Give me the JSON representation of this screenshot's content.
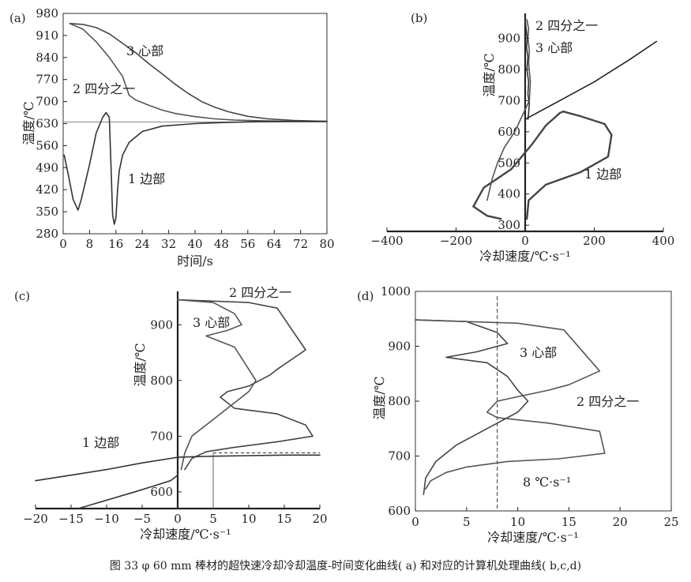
{
  "caption": "图 33  φ 60 mm 棒材的超快速冷却冷却温度-时间变化曲线( a) 和对应的计算机处理曲线( b,c,d)",
  "panels": [
    {
      "panel_label": "(a)",
      "chart_data": {
        "type": "line",
        "xlabel": "时间/s",
        "ylabel": "温度/℃",
        "xlim": [
          0,
          80
        ],
        "ylim": [
          280,
          980
        ],
        "xticks": [
          "0",
          "8",
          "16",
          "24",
          "32",
          "40",
          "48",
          "56",
          "64",
          "72",
          "80"
        ],
        "yticks": [
          "280",
          "350",
          "420",
          "490",
          "560",
          "630",
          "700",
          "770",
          "840",
          "910",
          "980"
        ],
        "reference_line_y": 635,
        "series": [
          {
            "name": "3 心部",
            "x": [
              2,
              6,
              10,
              14,
              18,
              22,
              26,
              30,
              34,
              38,
              42,
              46,
              50,
              56,
              62,
              70,
              80
            ],
            "y": [
              948,
              945,
              935,
              915,
              885,
              855,
              820,
              788,
              755,
              725,
              700,
              682,
              668,
              653,
              645,
              640,
              637
            ]
          },
          {
            "name": "2 四分之一",
            "x": [
              2,
              6,
              10,
              14,
              18,
              20,
              22,
              26,
              30,
              34,
              40,
              46,
              52,
              60,
              70,
              80
            ],
            "y": [
              948,
              930,
              890,
              840,
              780,
              720,
              705,
              688,
              673,
              662,
              652,
              645,
              641,
              639,
              637,
              637
            ]
          },
          {
            "name": "1 边部",
            "x": [
              0.3,
              1.5,
              3,
              4.5,
              5.5,
              8,
              10,
              12,
              13,
              14,
              14.5,
              15,
              15.5,
              16,
              16.5,
              17,
              18,
              20,
              24,
              30,
              40,
              50,
              60,
              70,
              80
            ],
            "y": [
              530,
              470,
              390,
              355,
              390,
              500,
              600,
              650,
              665,
              650,
              500,
              340,
              310,
              330,
              420,
              480,
              530,
              570,
              605,
              622,
              630,
              634,
              636,
              637,
              637
            ]
          }
        ],
        "annotations": [
          "3 心部",
          "2 四分之一",
          "1 边部"
        ]
      }
    },
    {
      "panel_label": "(b)",
      "chart_data": {
        "type": "line",
        "xlabel": "冷却速度/℃·s⁻¹",
        "ylabel": "温度/℃",
        "xlim": [
          -400,
          400
        ],
        "ylim": [
          280,
          980
        ],
        "xticks": [
          "−400",
          "−200",
          "0",
          "200",
          "400"
        ],
        "yticks": [
          "300",
          "400",
          "500",
          "600",
          "700",
          "800",
          "900"
        ],
        "series": [
          {
            "name": "1 边部",
            "x": [
              -70,
              -110,
              -150,
              -120,
              -40,
              20,
              60,
              80,
              100,
              110,
              160,
              230,
              250,
              240,
              160,
              60,
              10,
              5
            ],
            "y": [
              320,
              330,
              360,
              420,
              480,
              560,
              620,
              640,
              660,
              665,
              650,
              625,
              590,
              520,
              470,
              430,
              380,
              320
            ]
          },
          {
            "name": "2 四分之一",
            "x": [
              5,
              10,
              8,
              12,
              10,
              15,
              12,
              -30,
              -60,
              -80,
              -95,
              -110
            ],
            "y": [
              960,
              930,
              900,
              860,
              820,
              760,
              700,
              600,
              550,
              500,
              450,
              380
            ]
          },
          {
            "name": "3 心部",
            "x": [
              0,
              3,
              6,
              4,
              8,
              5,
              10,
              8,
              12,
              10,
              8
            ],
            "y": [
              960,
              930,
              900,
              870,
              840,
              800,
              760,
              720,
              690,
              660,
              640
            ]
          },
          {
            "name": "",
            "x": [
              0,
              100,
              200,
              300,
              380
            ],
            "y": [
              640,
              700,
              760,
              830,
              890
            ]
          }
        ],
        "annotations": [
          "2 四分之一",
          "3 心部",
          "1 边部"
        ]
      }
    },
    {
      "panel_label": "(c)",
      "chart_data": {
        "type": "line",
        "xlabel": "冷却速度/℃·s⁻¹",
        "ylabel": "温度/℃",
        "xlim": [
          -20,
          20
        ],
        "ylim": [
          570,
          960
        ],
        "xticks": [
          "−20",
          "−15",
          "−10",
          "−5",
          "0",
          "5",
          "10",
          "15",
          "20"
        ],
        "yticks": [
          "600",
          "700",
          "800",
          "900"
        ],
        "dashed_line_y": 670,
        "series": [
          {
            "name": "2 四分之一",
            "x": [
              0,
              10,
              14,
              18,
              14,
              13,
              10,
              7,
              6,
              8,
              14,
              18,
              19,
              14,
              8,
              4,
              2,
              1
            ],
            "y": [
              945,
              940,
              930,
              855,
              820,
              810,
              790,
              780,
              770,
              750,
              740,
              720,
              700,
              690,
              680,
              672,
              660,
              640
            ]
          },
          {
            "name": "3 心部",
            "x": [
              0,
              5,
              8,
              9,
              7,
              4,
              6,
              8,
              9,
              10,
              11,
              10,
              8,
              6,
              4,
              2,
              1,
              0.5
            ],
            "y": [
              945,
              940,
              920,
              900,
              890,
              880,
              870,
              860,
              840,
              820,
              800,
              780,
              760,
              740,
              720,
              700,
              670,
              640
            ]
          },
          {
            "name": "1 边部",
            "x": [
              -20,
              -15,
              -10,
              -5,
              -1,
              0,
              2,
              5,
              10,
              15,
              20
            ],
            "y": [
              620,
              630,
              640,
              652,
              660,
              662,
              663,
              664,
              665,
              666,
              666
            ]
          },
          {
            "name": "",
            "x": [
              -14,
              -10,
              -6,
              -3,
              -1,
              0
            ],
            "y": [
              570,
              585,
              600,
              612,
              620,
              630
            ]
          }
        ],
        "annotations": [
          "2 四分之一",
          "3 心部",
          "1 边部"
        ]
      }
    },
    {
      "panel_label": "(d)",
      "chart_data": {
        "type": "line",
        "xlabel": "冷却速度/℃·s⁻¹",
        "ylabel": "温度/℃",
        "xlim": [
          0,
          25
        ],
        "ylim": [
          600,
          1000
        ],
        "xticks": [
          "0",
          "5",
          "10",
          "15",
          "20",
          "25"
        ],
        "yticks": [
          "600",
          "700",
          "800",
          "900",
          "1000"
        ],
        "dashed_line_x": 8,
        "series": [
          {
            "name": "3 心部",
            "x": [
              0,
              5,
              8,
              9,
              6,
              3,
              5,
              7,
              9,
              10,
              11,
              10,
              8,
              6,
              4,
              2,
              1,
              0.8
            ],
            "y": [
              948,
              945,
              925,
              905,
              890,
              880,
              875,
              870,
              845,
              820,
              800,
              780,
              760,
              740,
              720,
              690,
              660,
              630
            ]
          },
          {
            "name": "2 四分之一",
            "x": [
              0,
              10,
              14.5,
              18,
              15,
              13,
              10,
              8,
              7,
              8,
              13,
              18,
              18.5,
              14,
              9,
              5,
              3,
              1.5,
              1
            ],
            "y": [
              948,
              942,
              930,
              855,
              830,
              820,
              808,
              800,
              780,
              770,
              760,
              745,
              705,
              695,
              690,
              680,
              670,
              655,
              640
            ]
          }
        ],
        "annotations": [
          "3 心部",
          "2 四分之一",
          "8 ℃·s⁻¹"
        ]
      }
    }
  ]
}
